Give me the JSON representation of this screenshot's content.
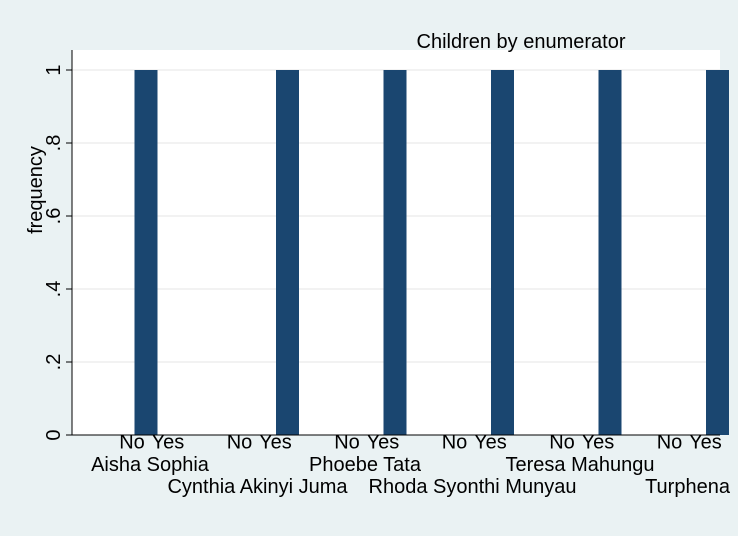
{
  "chart_data": {
    "type": "bar",
    "title": "Children by enumerator",
    "ylabel": "frequency",
    "xlabel": "",
    "ylim": [
      0,
      1
    ],
    "yticks": [
      "0",
      ".2",
      ".4",
      ".6",
      ".8",
      "1"
    ],
    "ytick_values": [
      0,
      0.2,
      0.4,
      0.6,
      0.8,
      1
    ],
    "grid": true,
    "bar_color": "#1a4670",
    "background": "#eaf2f3",
    "plot_background": "#ffffff",
    "sub_categories": [
      "No",
      "Yes"
    ],
    "groups": [
      {
        "name": "Aisha Sophia",
        "values": [
          1,
          0
        ]
      },
      {
        "name": "Cynthia Akinyi Juma",
        "values": [
          0,
          1
        ]
      },
      {
        "name": "Phoebe Tata",
        "values": [
          0,
          1
        ]
      },
      {
        "name": "Rhoda Syonthi Munyau",
        "values": [
          0,
          1
        ]
      },
      {
        "name": "Teresa Mahungu",
        "values": [
          0,
          1
        ]
      },
      {
        "name": "Turphena",
        "values": [
          0,
          1
        ]
      }
    ]
  }
}
